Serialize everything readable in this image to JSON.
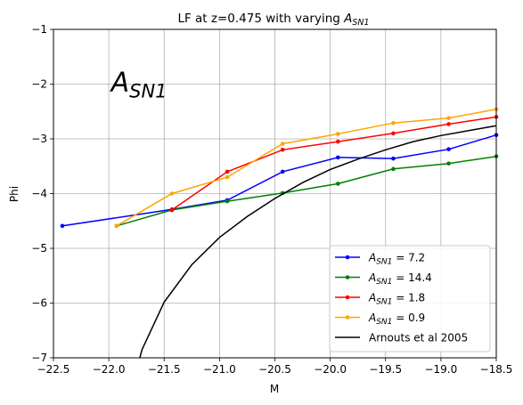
{
  "chart_data": {
    "type": "line",
    "title_text": "LF at z=0.475 with varying ",
    "title_sym": "A",
    "title_sub": "SN1",
    "xlabel": "M",
    "ylabel": "Phi",
    "xlim": [
      -22.5,
      -18.5
    ],
    "ylim": [
      -7,
      -1
    ],
    "xticks": [
      -22.5,
      -22.0,
      -21.5,
      -21.0,
      -20.5,
      -20.0,
      -19.5,
      -19.0,
      -18.5
    ],
    "xtick_labels": [
      "−22.5",
      "−22.0",
      "−21.5",
      "−21.0",
      "−20.5",
      "−20.0",
      "−19.5",
      "−19.0",
      "−18.5"
    ],
    "yticks": [
      -7,
      -6,
      -5,
      -4,
      -3,
      -2,
      -1
    ],
    "ytick_labels": [
      "−7",
      "−6",
      "−5",
      "−4",
      "−3",
      "−2",
      "−1"
    ],
    "grid": true,
    "legend_position": "lower-right",
    "annotation": {
      "sym": "A",
      "sub": "SN1",
      "x": -21.98,
      "y": -2.0
    },
    "series": [
      {
        "label_sym": "A",
        "label_sub": "SN1",
        "label_rest": " = 7.2",
        "color": "#0000ff",
        "markers": true,
        "x": [
          -22.42,
          -21.43,
          -20.93,
          -20.43,
          -19.93,
          -19.43,
          -18.93,
          -18.5
        ],
        "y": [
          -4.59,
          -4.29,
          -4.12,
          -3.6,
          -3.34,
          -3.36,
          -3.19,
          -2.93
        ]
      },
      {
        "label_sym": "A",
        "label_sub": "SN1",
        "label_rest": " = 14.4",
        "color": "#008000",
        "markers": true,
        "x": [
          -21.93,
          -21.43,
          -20.93,
          -20.43,
          -19.93,
          -19.43,
          -18.93,
          -18.5
        ],
        "y": [
          -4.59,
          -4.3,
          -4.14,
          -3.99,
          -3.82,
          -3.55,
          -3.45,
          -3.32
        ]
      },
      {
        "label_sym": "A",
        "label_sub": "SN1",
        "label_rest": " = 1.8",
        "color": "#ff0000",
        "markers": true,
        "x": [
          -21.43,
          -20.93,
          -20.43,
          -19.93,
          -19.43,
          -18.93,
          -18.5
        ],
        "y": [
          -4.3,
          -3.6,
          -3.2,
          -3.05,
          -2.9,
          -2.73,
          -2.6
        ]
      },
      {
        "label_sym": "A",
        "label_sub": "SN1",
        "label_rest": " = 0.9",
        "color": "#ffa500",
        "markers": true,
        "x": [
          -21.93,
          -21.43,
          -20.93,
          -20.43,
          -19.93,
          -19.43,
          -18.93,
          -18.5
        ],
        "y": [
          -4.59,
          -4.0,
          -3.7,
          -3.09,
          -2.91,
          -2.71,
          -2.62,
          -2.46
        ]
      },
      {
        "label_text": "Arnouts et al 2005",
        "color": "#000000",
        "markers": false,
        "x": [
          -21.72,
          -21.7,
          -21.5,
          -21.25,
          -21.0,
          -20.75,
          -20.5,
          -20.25,
          -20.0,
          -19.75,
          -19.5,
          -19.25,
          -19.0,
          -18.75,
          -18.5
        ],
        "y": [
          -7.0,
          -6.85,
          -5.98,
          -5.3,
          -4.8,
          -4.42,
          -4.09,
          -3.8,
          -3.56,
          -3.37,
          -3.2,
          -3.05,
          -2.94,
          -2.85,
          -2.76
        ]
      }
    ]
  }
}
